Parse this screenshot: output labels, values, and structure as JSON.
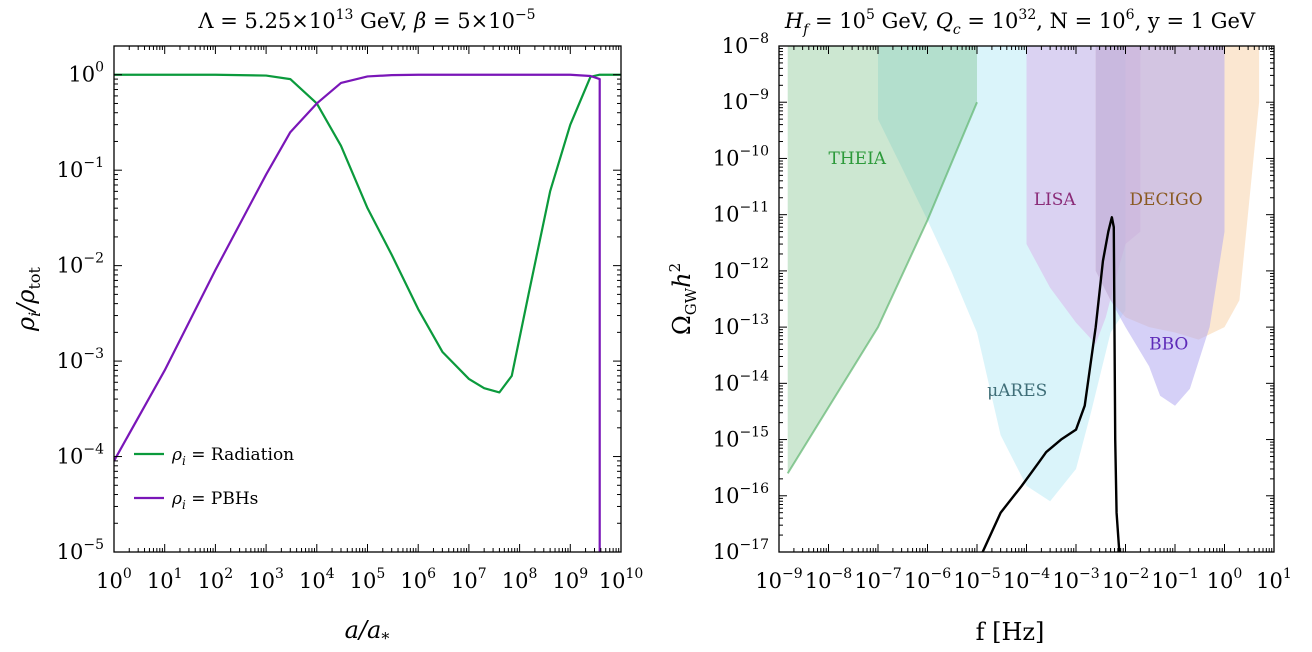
{
  "chart_data": [
    {
      "type": "line",
      "title_parts": [
        "Λ = 5.25×10",
        "13",
        "  GeV, ",
        "β",
        " = 5×10",
        "−5"
      ],
      "xlabel_main": "a/a",
      "xlabel_sub": "*",
      "ylabel_main": "ρ",
      "ylabel_sub_i": "i",
      "ylabel_sep": "/ρ",
      "ylabel_sub_tot": "tot",
      "x_scale": "log",
      "y_scale": "log",
      "xlim": [
        1,
        10000000000
      ],
      "ylim": [
        1e-05,
        2
      ],
      "x_ticks": [
        {
          "base": "10",
          "exp": "0",
          "value": 1
        },
        {
          "base": "10",
          "exp": "1",
          "value": 10
        },
        {
          "base": "10",
          "exp": "2",
          "value": 100
        },
        {
          "base": "10",
          "exp": "3",
          "value": 1000
        },
        {
          "base": "10",
          "exp": "4",
          "value": 10000
        },
        {
          "base": "10",
          "exp": "5",
          "value": 100000
        },
        {
          "base": "10",
          "exp": "6",
          "value": 1000000
        },
        {
          "base": "10",
          "exp": "7",
          "value": 10000000
        },
        {
          "base": "10",
          "exp": "8",
          "value": 100000000
        },
        {
          "base": "10",
          "exp": "9",
          "value": 1000000000
        },
        {
          "base": "10",
          "exp": "10",
          "value": 10000000000
        }
      ],
      "y_ticks": [
        {
          "base": "10",
          "exp": "0",
          "value": 1
        },
        {
          "base": "10",
          "exp": "−1",
          "value": 0.1
        },
        {
          "base": "10",
          "exp": "−2",
          "value": 0.01
        },
        {
          "base": "10",
          "exp": "−3",
          "value": 0.001
        },
        {
          "base": "10",
          "exp": "−4",
          "value": 0.0001
        },
        {
          "base": "10",
          "exp": "−5",
          "value": 1e-05
        }
      ],
      "legend_position": "lower-left",
      "series": [
        {
          "name": "Radiation",
          "legend_prefix": "ρ",
          "legend_sub": "i",
          "legend_eq": " = Radiation",
          "color": "#0b9a3c",
          "x": [
            1,
            100,
            1000,
            3000,
            10000,
            30000,
            100000,
            300000,
            1000000,
            3000000,
            10000000,
            20000000,
            40000000,
            70000000,
            150000000,
            400000000,
            1000000000,
            2500000000,
            3800000000,
            3800000000,
            10000000000
          ],
          "y": [
            1,
            1,
            0.98,
            0.9,
            0.5,
            0.18,
            0.04,
            0.013,
            0.0035,
            0.00125,
            0.00065,
            0.00052,
            0.00047,
            0.0007,
            0.005,
            0.06,
            0.3,
            0.95,
            1.0,
            1.0,
            1.0
          ]
        },
        {
          "name": "PBHs",
          "legend_prefix": "ρ",
          "legend_sub": "i",
          "legend_eq": " = PBHs",
          "color": "#7a16b8",
          "x": [
            1,
            10,
            100,
            1000,
            3000,
            10000,
            30000,
            100000,
            300000,
            1000000,
            100000000,
            1000000000,
            2500000000,
            3800000000,
            3800000000
          ],
          "y": [
            9e-05,
            0.0008,
            0.009,
            0.09,
            0.25,
            0.5,
            0.82,
            0.96,
            0.99,
            1.0,
            1.0,
            1.0,
            0.97,
            0.9,
            1e-05
          ]
        }
      ]
    },
    {
      "type": "area",
      "title_parts": [
        "H",
        "f",
        " = 10",
        "5",
        "  GeV, ",
        "Q",
        "c",
        " = 10",
        "32",
        ", N = 10",
        "6",
        ", y = 1 GeV"
      ],
      "xlabel": "f [Hz]",
      "ylabel_main": "Ω",
      "ylabel_sub": "GW",
      "ylabel_h": "h",
      "ylabel_sup": "2",
      "x_scale": "log",
      "y_scale": "log",
      "xlim": [
        1e-09,
        10
      ],
      "ylim": [
        1e-17,
        1e-08
      ],
      "x_ticks": [
        {
          "base": "10",
          "exp": "−9",
          "value": 1e-09
        },
        {
          "base": "10",
          "exp": "−8",
          "value": 1e-08
        },
        {
          "base": "10",
          "exp": "−7",
          "value": 1e-07
        },
        {
          "base": "10",
          "exp": "−6",
          "value": 1e-06
        },
        {
          "base": "10",
          "exp": "−5",
          "value": 1e-05
        },
        {
          "base": "10",
          "exp": "−4",
          "value": 0.0001
        },
        {
          "base": "10",
          "exp": "−3",
          "value": 0.001
        },
        {
          "base": "10",
          "exp": "−2",
          "value": 0.01
        },
        {
          "base": "10",
          "exp": "−1",
          "value": 0.1
        },
        {
          "base": "10",
          "exp": "0",
          "value": 1
        },
        {
          "base": "10",
          "exp": "1",
          "value": 10
        }
      ],
      "y_ticks": [
        {
          "base": "10",
          "exp": "−8",
          "value": 1e-08
        },
        {
          "base": "10",
          "exp": "−9",
          "value": 1e-09
        },
        {
          "base": "10",
          "exp": "−10",
          "value": 1e-10
        },
        {
          "base": "10",
          "exp": "−11",
          "value": 1e-11
        },
        {
          "base": "10",
          "exp": "−12",
          "value": 1e-12
        },
        {
          "base": "10",
          "exp": "−13",
          "value": 1e-13
        },
        {
          "base": "10",
          "exp": "−14",
          "value": 1e-14
        },
        {
          "base": "10",
          "exp": "−15",
          "value": 1e-15
        },
        {
          "base": "10",
          "exp": "−16",
          "value": 1e-16
        },
        {
          "base": "10",
          "exp": "−17",
          "value": 1e-17
        }
      ],
      "regions": [
        {
          "name": "μARES",
          "color": "#aee6f5",
          "opacity": 0.45,
          "label_pos": [
            1.6e-05,
            6e-15
          ],
          "f": [
            1e-07,
            1e-07,
            3e-07,
            1e-06,
            3e-06,
            1e-05,
            3e-05,
            0.0001,
            0.0003,
            0.001,
            0.002,
            0.005,
            0.01,
            0.01,
            1e-07
          ],
          "omega": [
            1e-08,
            5e-10,
            7e-11,
            8e-12,
            1e-12,
            8e-14,
            1.2e-15,
            1.5e-16,
            8e-17,
            3e-16,
            3e-15,
            8e-14,
            2e-13,
            1e-08,
            1e-08
          ]
        },
        {
          "name": "THEIA",
          "color": "#5fb56f",
          "opacity": 0.32,
          "label_pos": [
            1e-08,
            8e-11
          ],
          "f": [
            1.5e-09,
            1.5e-09,
            1e-07,
            1e-06,
            1e-05,
            1e-05,
            1.5e-09
          ],
          "omega": [
            1e-08,
            2.5e-16,
            1e-13,
            8e-12,
            1e-09,
            1e-08,
            1e-08
          ]
        },
        {
          "name": "LISA",
          "color": "#d9a1e6",
          "opacity": 0.4,
          "label_pos": [
            0.00014,
            1.5e-11
          ],
          "f": [
            0.0001,
            0.0001,
            0.0003,
            0.001,
            0.0025,
            0.004,
            0.007,
            0.01,
            0.02,
            0.02,
            0.0001
          ],
          "omega": [
            1e-08,
            3e-12,
            5e-13,
            1.2e-13,
            5e-14,
            1.5e-13,
            1e-12,
            3e-12,
            5e-12,
            1e-08,
            1e-08
          ]
        },
        {
          "name": "DECIGO",
          "color": "#f5c28c",
          "opacity": 0.4,
          "label_pos": [
            0.012,
            1.5e-11
          ],
          "f": [
            0.0025,
            0.0025,
            0.005,
            0.01,
            0.03,
            0.1,
            0.3,
            1,
            2,
            5,
            5,
            0.0025
          ],
          "omega": [
            1e-08,
            1e-12,
            3e-13,
            1.5e-13,
            1e-13,
            8e-14,
            6e-14,
            1e-13,
            3e-13,
            1e-09,
            1e-08,
            1e-08
          ]
        },
        {
          "name": "BBO",
          "color": "#b2a9f0",
          "opacity": 0.55,
          "label_pos": [
            0.03,
            4e-14
          ],
          "f": [
            0.0025,
            0.005,
            0.01,
            0.03,
            0.05,
            0.1,
            0.2,
            0.5,
            1,
            1,
            0.0025
          ],
          "omega": [
            1e-12,
            3e-13,
            1e-13,
            2e-14,
            6e-15,
            4e-15,
            8e-15,
            1e-13,
            5e-12,
            1e-08,
            1e-08
          ]
        }
      ],
      "region_label_colors": {
        "μARES": "#3f6e78",
        "THEIA": "#2c9a3a",
        "LISA": "#8a2b78",
        "DECIGO": "#8a5a22",
        "BBO": "#5d2ab8"
      },
      "signal": {
        "color": "#000000",
        "f": [
          1.3e-05,
          3e-05,
          8e-05,
          0.00018,
          0.00025,
          0.0005,
          0.001,
          0.0015,
          0.0025,
          0.0035,
          0.0045,
          0.0053,
          0.0058,
          0.0062,
          0.0066,
          0.0075
        ],
        "omega": [
          1e-17,
          5e-17,
          1.5e-16,
          4e-16,
          6e-16,
          1e-15,
          1.5e-15,
          4e-15,
          1e-13,
          1.5e-12,
          5e-12,
          9e-12,
          6e-12,
          1e-15,
          5e-17,
          1e-17
        ]
      }
    }
  ]
}
